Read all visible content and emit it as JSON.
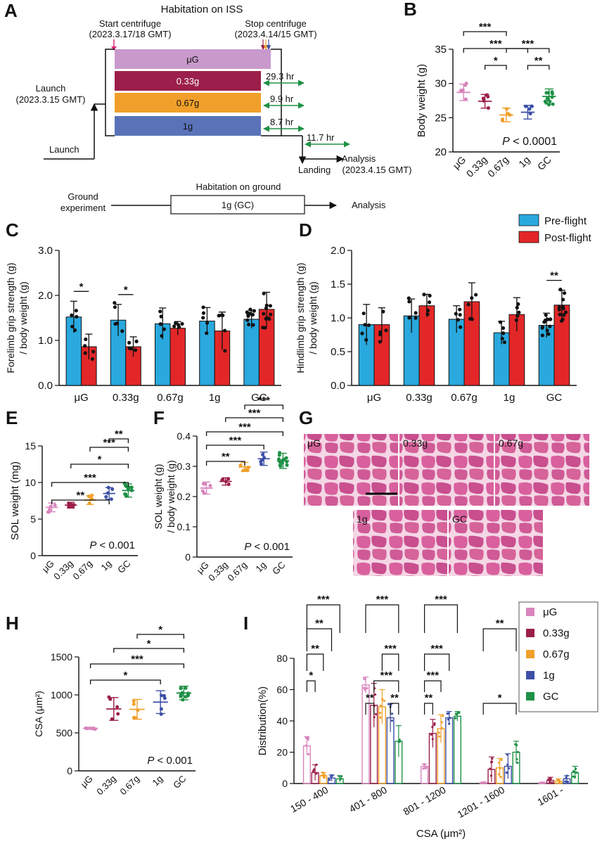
{
  "colors": {
    "uG": "#d985bd",
    "g033": "#9b1f4a",
    "g067": "#f0a02a",
    "g1": "#3d50a6",
    "GC": "#1f9146",
    "pre": "#29a9de",
    "post": "#e32728",
    "uGbar": "#c89acb",
    "hist": "#e06b9a"
  },
  "panelA": {
    "label": "A",
    "title": "Habitation on ISS",
    "start_label": "Start centrifuge",
    "start_date": "(2023.3.17/18 GMT)",
    "stop_label": "Stop centrifuge",
    "stop_date": "(2023.4.14/15 GMT)",
    "launch1": "Launch",
    "launch1_date": "(2023.3.15 GMT)",
    "launch2": "Launch",
    "bars": [
      "μG",
      "0.33g",
      "0.67g",
      "1g"
    ],
    "hours": [
      "29.3 hr",
      "9.9 hr",
      "8.7 hr",
      "11.7 hr"
    ],
    "landing": "Landing",
    "analysis": "Analysis",
    "analysis_date": "(2023.4.15 GMT)",
    "ground_title": "Habitation on ground",
    "ground1": "Ground",
    "ground2": "experiment",
    "ground_box": "1g (GC)",
    "ground_analysis": "Analysis"
  },
  "chart_data": [
    {
      "panel": "B",
      "type": "scatter",
      "ylabel": "Body weight (g)",
      "categories": [
        "μG",
        "0.33g",
        "0.67g",
        "1g",
        "GC"
      ],
      "ylim": [
        20,
        35
      ],
      "yticks": [
        20,
        25,
        30,
        35
      ],
      "means": [
        28.7,
        27.4,
        25.4,
        25.8,
        28.1
      ],
      "sd": [
        1.2,
        1.0,
        1.0,
        1.0,
        1.1
      ],
      "sig": [
        {
          "from": 0,
          "to": 2,
          "stars": "***"
        },
        {
          "from": 0,
          "to": 3,
          "stars": "***"
        },
        {
          "from": 1,
          "to": 2,
          "stars": "*"
        },
        {
          "from": 2,
          "to": 4,
          "stars": "***"
        },
        {
          "from": 3,
          "to": 4,
          "stars": "**"
        }
      ],
      "annotation": "P < 0.0001"
    },
    {
      "panel": "C",
      "type": "bar",
      "ylabel": "Forelimb grip strength (g) / body weight (g)",
      "categories": [
        "μG",
        "0.33g",
        "0.67g",
        "1g",
        "GC"
      ],
      "ylim": [
        0,
        3
      ],
      "yticks": [
        0,
        1,
        2,
        3
      ],
      "series": [
        {
          "name": "Pre-flight",
          "values": [
            1.52,
            1.45,
            1.37,
            1.43,
            1.47
          ],
          "sd": [
            0.35,
            0.35,
            0.35,
            0.3,
            0.2
          ]
        },
        {
          "name": "Post-flight",
          "values": [
            0.86,
            0.86,
            1.27,
            1.21,
            1.69
          ],
          "sd": [
            0.28,
            0.22,
            0.15,
            0.42,
            0.38
          ]
        }
      ],
      "sig": [
        {
          "cat": 0,
          "stars": "*"
        },
        {
          "cat": 1,
          "stars": "*"
        }
      ]
    },
    {
      "panel": "D",
      "type": "bar",
      "ylabel": "Hindlimb grip strength (g) / body weight (g)",
      "categories": [
        "μG",
        "0.33g",
        "0.67g",
        "1g",
        "GC"
      ],
      "ylim": [
        0,
        2
      ],
      "yticks": [
        0,
        0.5,
        1,
        1.5,
        2
      ],
      "series": [
        {
          "name": "Pre-flight",
          "values": [
            0.9,
            1.03,
            0.98,
            0.78,
            0.89
          ],
          "sd": [
            0.3,
            0.25,
            0.2,
            0.17,
            0.18
          ]
        },
        {
          "name": "Post-flight",
          "values": [
            0.9,
            1.18,
            1.24,
            1.05,
            1.19
          ],
          "sd": [
            0.25,
            0.17,
            0.28,
            0.25,
            0.22
          ]
        }
      ],
      "sig": [
        {
          "cat": 4,
          "stars": "**"
        }
      ],
      "legend": [
        "Pre-flight",
        "Post-flight"
      ]
    },
    {
      "panel": "E",
      "type": "scatter",
      "ylabel": "SOL weight (mg)",
      "categories": [
        "μG",
        "0.33g",
        "0.67g",
        "1g",
        "GC"
      ],
      "ylim": [
        0,
        15
      ],
      "yticks": [
        0,
        5,
        10,
        15
      ],
      "means": [
        6.6,
        6.9,
        7.6,
        8.5,
        8.9
      ],
      "sd": [
        0.6,
        0.4,
        0.6,
        0.8,
        0.9
      ],
      "sig": [
        {
          "from": 0,
          "to": 3,
          "stars": "**"
        },
        {
          "from": 0,
          "to": 4,
          "stars": "***"
        },
        {
          "from": 1,
          "to": 4,
          "stars": "*"
        },
        {
          "from": 2,
          "to": 4,
          "stars": "***"
        },
        {
          "from": 3,
          "to": 4,
          "stars": "**"
        }
      ],
      "annotation": "P < 0.001"
    },
    {
      "panel": "F",
      "type": "scatter",
      "ylabel": "SOL weight (g) / body weight (g)",
      "categories": [
        "μG",
        "0.33g",
        "0.67g",
        "1g",
        "GC"
      ],
      "ylim": [
        0,
        0.4
      ],
      "yticks": [
        0,
        0.1,
        0.2,
        0.3,
        0.4
      ],
      "means": [
        0.228,
        0.25,
        0.298,
        0.325,
        0.318
      ],
      "sd": [
        0.02,
        0.012,
        0.015,
        0.022,
        0.025
      ],
      "sig": [
        {
          "from": 0,
          "to": 2,
          "stars": "**"
        },
        {
          "from": 0,
          "to": 3,
          "stars": "***"
        },
        {
          "from": 0,
          "to": 4,
          "stars": "***"
        },
        {
          "from": 1,
          "to": 4,
          "stars": "***"
        },
        {
          "from": 2,
          "to": 4,
          "stars": "***"
        }
      ],
      "annotation": "P < 0.001"
    },
    {
      "panel": "H",
      "type": "scatter",
      "ylabel": "CSA (μm²)",
      "categories": [
        "μG",
        "0.33g",
        "0.67g",
        "1g",
        "GC"
      ],
      "ylim": [
        0,
        1500
      ],
      "yticks": [
        0,
        500,
        1000,
        1500
      ],
      "means": [
        560,
        815,
        810,
        905,
        1025
      ],
      "sd": [
        15,
        150,
        130,
        150,
        90
      ],
      "sig": [
        {
          "from": 0,
          "to": 3,
          "stars": "*"
        },
        {
          "from": 0,
          "to": 4,
          "stars": "***"
        },
        {
          "from": 1,
          "to": 4,
          "stars": "*"
        },
        {
          "from": 2,
          "to": 4,
          "stars": "*"
        }
      ],
      "annotation": "P < 0.001"
    },
    {
      "panel": "I",
      "type": "bar",
      "xlabel": "CSA (μm²)",
      "ylabel": "Distribution(%)",
      "categories": [
        "150 - 400",
        "401 - 800",
        "801 - 1200",
        "1201 - 1600",
        "1601 -"
      ],
      "ylim": [
        0,
        80
      ],
      "yticks": [
        0,
        20,
        40,
        60,
        80
      ],
      "series": [
        {
          "name": "μG",
          "values": [
            24,
            63,
            11,
            0.5,
            0.5
          ],
          "sd": [
            6,
            5,
            1.5,
            0.3,
            0.3
          ]
        },
        {
          "name": "0.33g",
          "values": [
            7,
            50,
            32,
            9,
            2
          ],
          "sd": [
            5,
            14,
            9,
            8,
            2
          ]
        },
        {
          "name": "0.67g",
          "values": [
            5,
            49,
            35,
            10,
            1.5
          ],
          "sd": [
            2,
            11,
            9,
            6,
            1.5
          ]
        },
        {
          "name": "1g",
          "values": [
            3.5,
            42,
            42,
            11,
            3
          ],
          "sd": [
            2,
            9,
            4,
            8,
            2
          ]
        },
        {
          "name": "GC",
          "values": [
            3,
            27,
            43,
            20,
            7
          ],
          "sd": [
            2,
            10,
            3,
            7,
            4
          ]
        }
      ],
      "sig": [
        {
          "group": 0,
          "from": 0,
          "to": 1,
          "stars": "*",
          "level": 1
        },
        {
          "group": 0,
          "from": 0,
          "to": 2,
          "stars": "**",
          "level": 2
        },
        {
          "group": 0,
          "from": 0,
          "to": 3,
          "stars": "**",
          "level": 3
        },
        {
          "group": 0,
          "from": 0,
          "to": 4,
          "stars": "***",
          "level": 4
        },
        {
          "group": 1,
          "from": 0,
          "to": 1,
          "stars": "**",
          "level": 0
        },
        {
          "group": 1,
          "from": 3,
          "to": 4,
          "stars": "**",
          "level": 0
        },
        {
          "group": 1,
          "from": 1,
          "to": 4,
          "stars": "***",
          "level": 1
        },
        {
          "group": 1,
          "from": 2,
          "to": 4,
          "stars": "***",
          "level": 2
        },
        {
          "group": 1,
          "from": 0,
          "to": 4,
          "stars": "***",
          "level": 4
        },
        {
          "group": 2,
          "from": 0,
          "to": 1,
          "stars": "**",
          "level": 0
        },
        {
          "group": 2,
          "from": 0,
          "to": 2,
          "stars": "***",
          "level": 1
        },
        {
          "group": 2,
          "from": 0,
          "to": 3,
          "stars": "***",
          "level": 2
        },
        {
          "group": 2,
          "from": 0,
          "to": 4,
          "stars": "***",
          "level": 4
        },
        {
          "group": 3,
          "from": 0,
          "to": 4,
          "stars": "*",
          "level": 0
        },
        {
          "group": 3,
          "from": 0,
          "to": 4,
          "stars": "**",
          "level": 3
        }
      ],
      "legend": [
        "μG",
        "0.33g",
        "0.67g",
        "1g",
        "GC"
      ]
    }
  ],
  "panelG": {
    "label": "G",
    "tiles": [
      "μG",
      "0.33g",
      "0.67g",
      "1g",
      "GC"
    ]
  },
  "labels": {
    "B": "B",
    "C": "C",
    "D": "D",
    "E": "E",
    "F": "F",
    "H": "H",
    "I": "I"
  }
}
